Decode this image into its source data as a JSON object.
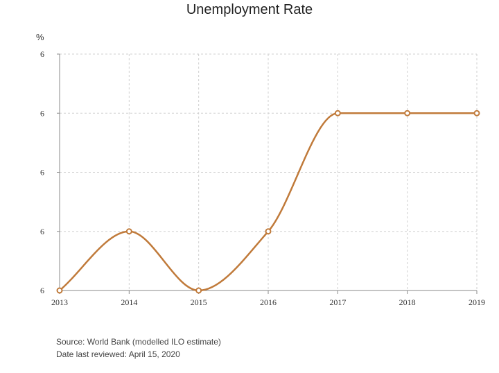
{
  "chart_data": {
    "type": "line",
    "title": "Unemployment Rate",
    "unit_label": "%",
    "x": [
      "2013",
      "2014",
      "2015",
      "2016",
      "2017",
      "2018",
      "2019"
    ],
    "series": [
      {
        "values": [
          0,
          2,
          0,
          2,
          6,
          6,
          6
        ]
      }
    ],
    "y_tick_labels": [
      "6",
      "6",
      "6",
      "6",
      "6"
    ],
    "ylim": [
      0,
      8
    ],
    "grid": true,
    "line_color": "#c07a3a",
    "marker": "hollow-circle"
  },
  "footer": {
    "source": "Source: World Bank (modelled ILO estimate)",
    "reviewed": "Date last reviewed: April 15, 2020"
  }
}
